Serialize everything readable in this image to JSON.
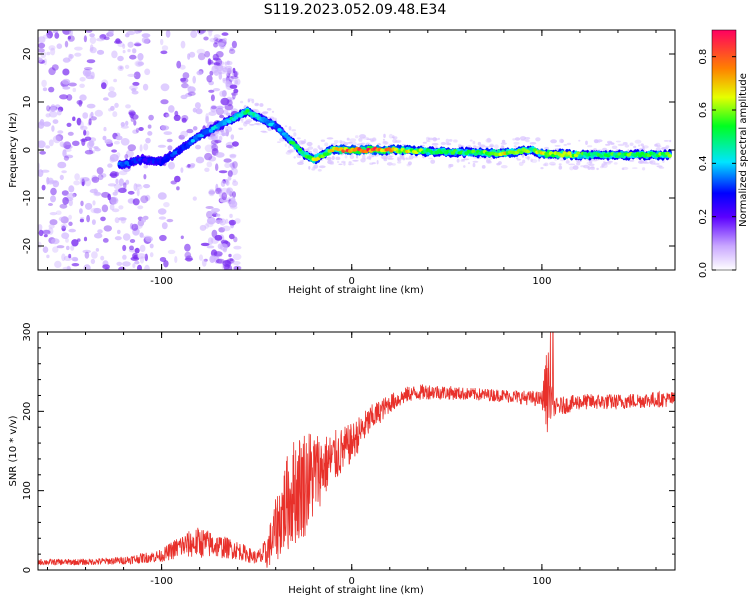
{
  "title": "S119.2023.052.09.48.E34",
  "colors": {
    "snr_line": "#e8302a",
    "scatter": "#7b2ff0",
    "axis": "#000000"
  },
  "chart_data": [
    {
      "type": "heatmap",
      "xlabel": "Height of straight line (km)",
      "ylabel": "Frequency (Hz)",
      "xlim": [
        -165,
        170
      ],
      "ylim": [
        -25,
        25
      ],
      "xticks": [
        -100,
        0,
        100
      ],
      "yticks": [
        -20,
        -10,
        0,
        10,
        20
      ],
      "xtick_labels": [
        "-100",
        "0",
        "100"
      ],
      "ytick_labels": [
        "-20",
        "-10",
        "0",
        "10",
        "20"
      ],
      "colorbar": {
        "label": "Normalized spectral amplitude",
        "range": [
          0,
          0.9
        ],
        "ticks": [
          0.0,
          0.2,
          0.4,
          0.6,
          0.8
        ],
        "tick_labels": [
          "0.0",
          "0.2",
          "0.4",
          "0.6",
          "0.8"
        ]
      },
      "ridge": {
        "x": [
          -120,
          -110,
          -100,
          -90,
          -80,
          -70,
          -60,
          -55,
          -50,
          -45,
          -40,
          -35,
          -30,
          -25,
          -20,
          -15,
          -10,
          -5,
          0,
          10,
          20,
          40,
          60,
          80,
          95,
          100,
          120,
          140,
          160,
          168
        ],
        "y": [
          -3,
          -2,
          -2.5,
          0,
          3,
          5,
          7,
          8,
          7,
          6,
          5,
          3,
          1,
          -1,
          -2,
          -1,
          0,
          0,
          0,
          0,
          0,
          -0.3,
          -0.5,
          -0.7,
          0,
          -0.8,
          -1,
          -1,
          -1,
          -1
        ],
        "amplitude": [
          0.35,
          0.3,
          0.3,
          0.35,
          0.4,
          0.45,
          0.5,
          0.55,
          0.5,
          0.45,
          0.4,
          0.45,
          0.55,
          0.6,
          0.75,
          0.65,
          0.7,
          0.8,
          0.85,
          0.9,
          0.75,
          0.6,
          0.55,
          0.7,
          0.6,
          0.75,
          0.6,
          0.6,
          0.6,
          0.6
        ]
      }
    },
    {
      "type": "line",
      "xlabel": "Height of straight line (km)",
      "ylabel": "SNR (10 * v/v)",
      "xlim": [
        -165,
        170
      ],
      "ylim": [
        0,
        300
      ],
      "xticks": [
        -100,
        0,
        100
      ],
      "yticks": [
        0,
        100,
        200,
        300
      ],
      "xtick_labels": [
        "-100",
        "0",
        "100"
      ],
      "ytick_labels": [
        "0",
        "100",
        "200",
        "300"
      ],
      "envelope": {
        "x": [
          -165,
          -140,
          -120,
          -100,
          -90,
          -80,
          -70,
          -60,
          -50,
          -45,
          -40,
          -35,
          -30,
          -25,
          -20,
          -15,
          -10,
          -5,
          0,
          10,
          20,
          30,
          40,
          60,
          80,
          100,
          103,
          105,
          107,
          120,
          140,
          160,
          170
        ],
        "y": [
          10,
          10,
          12,
          18,
          30,
          35,
          30,
          25,
          15,
          20,
          50,
          80,
          100,
          110,
          120,
          130,
          140,
          150,
          160,
          190,
          210,
          222,
          225,
          222,
          220,
          215,
          230,
          215,
          205,
          212,
          212,
          215,
          215
        ],
        "noise": [
          4,
          4,
          5,
          8,
          15,
          20,
          15,
          12,
          8,
          20,
          40,
          60,
          70,
          70,
          60,
          40,
          35,
          30,
          25,
          18,
          12,
          10,
          10,
          8,
          8,
          10,
          60,
          20,
          12,
          10,
          10,
          10,
          10
        ]
      }
    }
  ]
}
